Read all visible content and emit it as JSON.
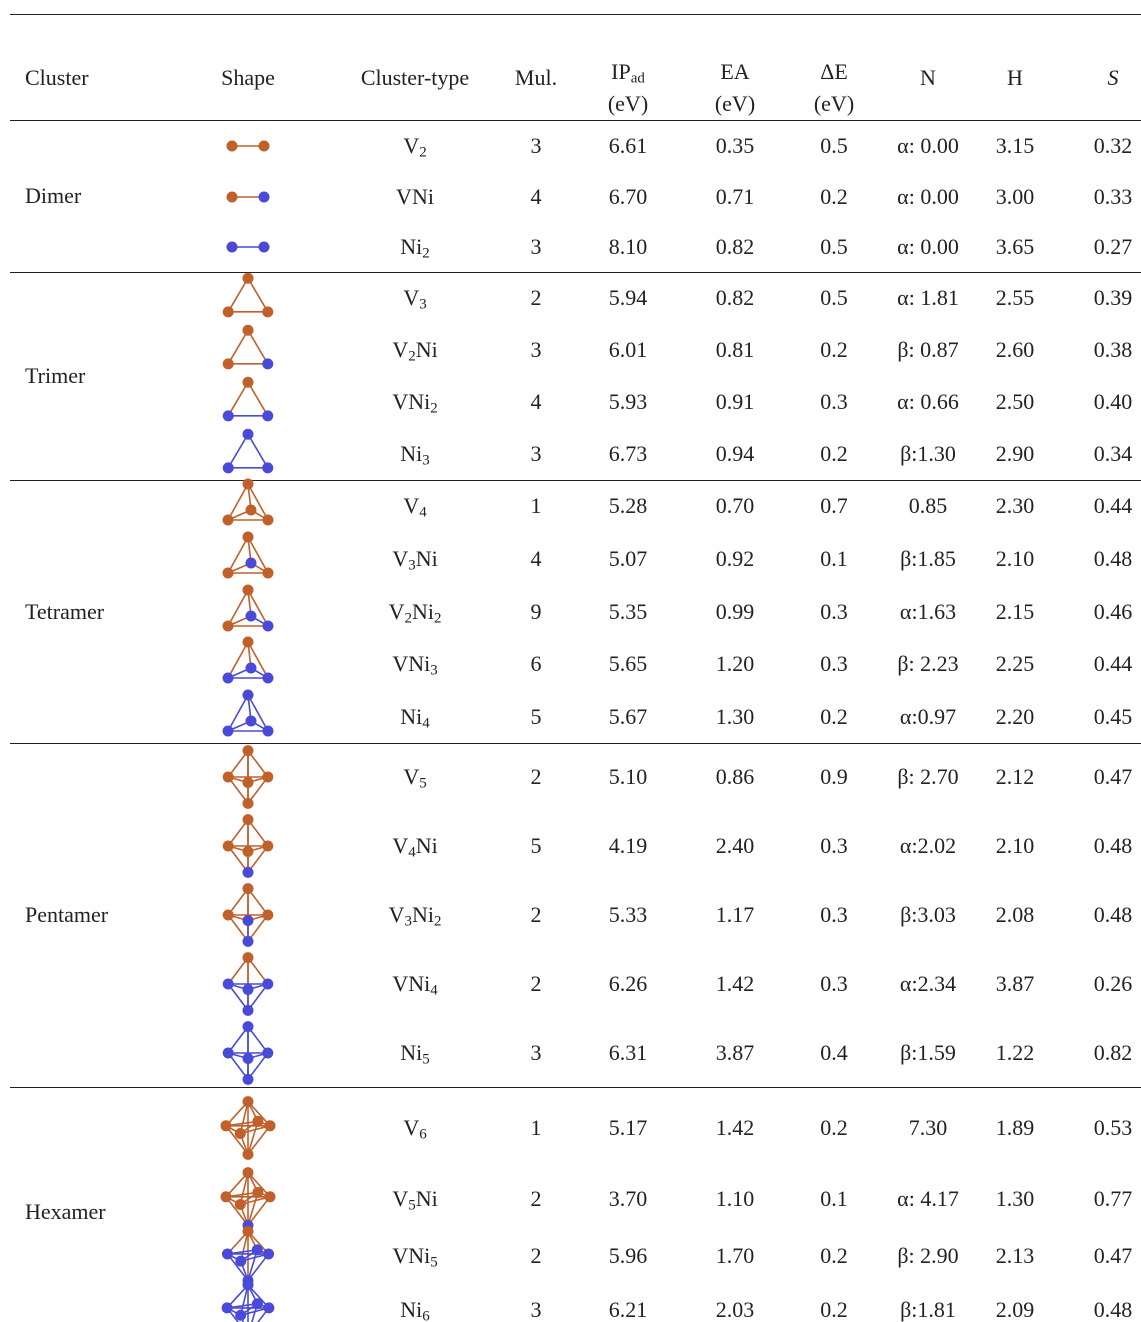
{
  "header": {
    "columns": [
      {
        "label": "Cluster"
      },
      {
        "label": "Shape"
      },
      {
        "label": "Cluster-type"
      },
      {
        "label": "Mul."
      },
      {
        "label": "IP",
        "sub": "ad",
        "unit": "(eV)"
      },
      {
        "label": "EA",
        "unit": "(eV)"
      },
      {
        "label": "ΔE",
        "unit": "(eV)"
      },
      {
        "label": "N"
      },
      {
        "label": "H"
      },
      {
        "label": "S"
      }
    ]
  },
  "groups": [
    {
      "name": "Dimer",
      "rows": [
        [
          "V2",
          "3",
          "6.61",
          "0.35",
          "0.5",
          "α: 0.00",
          "3.15",
          "0.32"
        ],
        [
          "VNi",
          "4",
          "6.70",
          "0.71",
          "0.2",
          "α: 0.00",
          "3.00",
          "0.33"
        ],
        [
          "Ni2",
          "3",
          "8.10",
          "0.82",
          "0.5",
          "α: 0.00",
          "3.65",
          "0.27"
        ]
      ]
    },
    {
      "name": "Trimer",
      "rows": [
        [
          "V3",
          "2",
          "5.94",
          "0.82",
          "0.5",
          "α: 1.81",
          "2.55",
          "0.39"
        ],
        [
          "V2Ni",
          "3",
          "6.01",
          "0.81",
          "0.2",
          "β: 0.87",
          "2.60",
          "0.38"
        ],
        [
          "VNi2",
          "4",
          "5.93",
          "0.91",
          "0.3",
          "α: 0.66",
          "2.50",
          "0.40"
        ],
        [
          "Ni3",
          "3",
          "6.73",
          "0.94",
          "0.2",
          "β:1.30",
          "2.90",
          "0.34"
        ]
      ]
    },
    {
      "name": "Tetramer",
      "rows": [
        [
          "V4",
          "1",
          "5.28",
          "0.70",
          "0.7",
          "0.85",
          "2.30",
          "0.44"
        ],
        [
          "V3Ni",
          "4",
          "5.07",
          "0.92",
          "0.1",
          "β:1.85",
          "2.10",
          "0.48"
        ],
        [
          "V2Ni2",
          "9",
          "5.35",
          "0.99",
          "0.3",
          "α:1.63",
          "2.15",
          "0.46"
        ],
        [
          "VNi3",
          "6",
          "5.65",
          "1.20",
          "0.3",
          "β: 2.23",
          "2.25",
          "0.44"
        ],
        [
          "Ni4",
          "5",
          "5.67",
          "1.30",
          "0.2",
          "α:0.97",
          "2.20",
          "0.45"
        ]
      ]
    },
    {
      "name": "Pentamer",
      "rows": [
        [
          "V5",
          "2",
          "5.10",
          "0.86",
          "0.9",
          "β: 2.70",
          "2.12",
          "0.47"
        ],
        [
          "V4Ni",
          "5",
          "4.19",
          "2.40",
          "0.3",
          "α:2.02",
          "2.10",
          "0.48"
        ],
        [
          "V3Ni2",
          "2",
          "5.33",
          "1.17",
          "0.3",
          "β:3.03",
          "2.08",
          "0.48"
        ],
        [
          "VNi4",
          "2",
          "6.26",
          "1.42",
          "0.3",
          "α:2.34",
          "3.87",
          "0.26"
        ],
        [
          "Ni5",
          "3",
          "6.31",
          "3.87",
          "0.4",
          "β:1.59",
          "1.22",
          "0.82"
        ]
      ]
    },
    {
      "name": "Hexamer",
      "rows": [
        [
          "V6",
          "1",
          "5.17",
          "1.42",
          "0.2",
          "7.30",
          "1.89",
          "0.53"
        ],
        [
          "V5Ni",
          "2",
          "3.70",
          "1.10",
          "0.1",
          "α: 4.17",
          "1.30",
          "0.77"
        ],
        [
          "VNi5",
          "2",
          "5.96",
          "1.70",
          "0.2",
          "β: 2.90",
          "2.13",
          "0.47"
        ],
        [
          "Ni6",
          "3",
          "6.21",
          "2.03",
          "0.2",
          "β:1.81",
          "2.09",
          "0.48"
        ]
      ]
    }
  ]
}
